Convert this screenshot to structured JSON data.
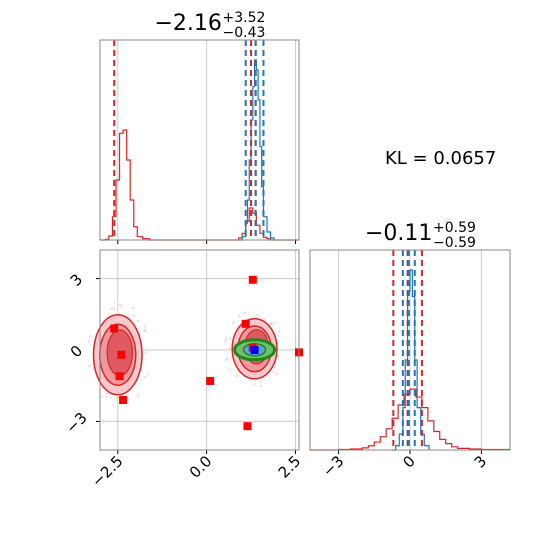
{
  "chart_data": [
    {
      "panel": "marginal-param-1",
      "type": "histogram",
      "title": {
        "main": "−2.16",
        "sup": "+3.52",
        "sub": "−0.43"
      },
      "xlim": [
        -3.0,
        2.6
      ],
      "xticks": [
        -2.5,
        0.0,
        2.5
      ],
      "series": [
        {
          "color": "#d62728",
          "x": [
            -3.0,
            -2.85,
            -2.75,
            -2.65,
            -2.55,
            -2.45,
            -2.35,
            -2.25,
            -2.15,
            -2.05,
            -1.95,
            -1.8,
            -1.6,
            -1.3,
            0.9,
            1.0,
            1.1,
            1.2,
            1.3,
            1.4,
            1.5,
            1.6,
            1.7,
            1.8,
            1.9,
            2.2,
            2.6
          ],
          "values": [
            0,
            1,
            6,
            35,
            90,
            160,
            165,
            120,
            60,
            20,
            5,
            2,
            0,
            0,
            3,
            10,
            28,
            48,
            40,
            22,
            10,
            4,
            2,
            0,
            0,
            0,
            0
          ]
        },
        {
          "color": "#1f77b4",
          "x": [
            0.9,
            1.0,
            1.1,
            1.15,
            1.2,
            1.25,
            1.3,
            1.35,
            1.4,
            1.45,
            1.5,
            1.55,
            1.6,
            1.7,
            1.8,
            1.9
          ],
          "values": [
            0,
            5,
            25,
            60,
            120,
            180,
            230,
            270,
            255,
            210,
            140,
            80,
            35,
            12,
            3,
            0
          ]
        }
      ],
      "quantiles_red": [
        -2.6,
        1.38,
        1.25
      ],
      "quantiles_blue": [
        1.1,
        1.38,
        1.6
      ]
    },
    {
      "panel": "joint",
      "type": "scatter",
      "xlim": [
        -3.0,
        2.6
      ],
      "ylim": [
        -4.2,
        4.2
      ],
      "xticks": [
        -2.5,
        0.0,
        2.5
      ],
      "yticks": [
        -3,
        0,
        3
      ],
      "red_squares": [
        [
          -2.6,
          0.9
        ],
        [
          -2.4,
          -0.2
        ],
        [
          -2.45,
          -1.1
        ],
        [
          -2.35,
          -2.1
        ],
        [
          0.1,
          -1.3
        ],
        [
          1.1,
          1.1
        ],
        [
          1.3,
          2.95
        ],
        [
          1.15,
          -3.2
        ],
        [
          2.6,
          -0.1
        ],
        [
          1.3,
          0.1
        ]
      ],
      "blue_marker": [
        1.35,
        0.0
      ],
      "clusters": [
        {
          "cx": -2.5,
          "cy": -0.2,
          "rx": 0.65,
          "ry": 1.6
        },
        {
          "cx": 1.35,
          "cy": 0.05,
          "rx": 0.6,
          "ry": 1.2
        }
      ]
    },
    {
      "panel": "marginal-param-2",
      "type": "histogram",
      "title": {
        "main": "−0.11",
        "sup": "+0.59",
        "sub": "−0.59"
      },
      "xlim": [
        -4.2,
        4.2
      ],
      "xticks": [
        -3,
        0,
        3
      ],
      "series": [
        {
          "color": "#d62728",
          "x": [
            -4.2,
            -3.0,
            -2.5,
            -2.0,
            -1.75,
            -1.5,
            -1.25,
            -1.0,
            -0.75,
            -0.5,
            -0.25,
            0.0,
            0.25,
            0.5,
            0.75,
            1.0,
            1.25,
            1.5,
            1.75,
            2.0,
            2.5,
            3.0,
            4.2
          ],
          "values": [
            0,
            1,
            2,
            4,
            8,
            15,
            25,
            40,
            60,
            85,
            105,
            115,
            100,
            80,
            55,
            35,
            20,
            12,
            6,
            3,
            2,
            1,
            0
          ]
        },
        {
          "color": "#1f77b4",
          "x": [
            -0.8,
            -0.6,
            -0.45,
            -0.3,
            -0.2,
            -0.1,
            0.0,
            0.1,
            0.2,
            0.3,
            0.45,
            0.6,
            0.8
          ],
          "values": [
            0,
            8,
            30,
            80,
            170,
            300,
            340,
            290,
            170,
            80,
            30,
            8,
            0
          ]
        }
      ],
      "quantiles_red": [
        -0.7,
        -0.1,
        0.5
      ],
      "quantiles_blue": [
        -0.3,
        -0.05,
        0.2
      ]
    }
  ],
  "kl_label": "KL = 0.0657"
}
